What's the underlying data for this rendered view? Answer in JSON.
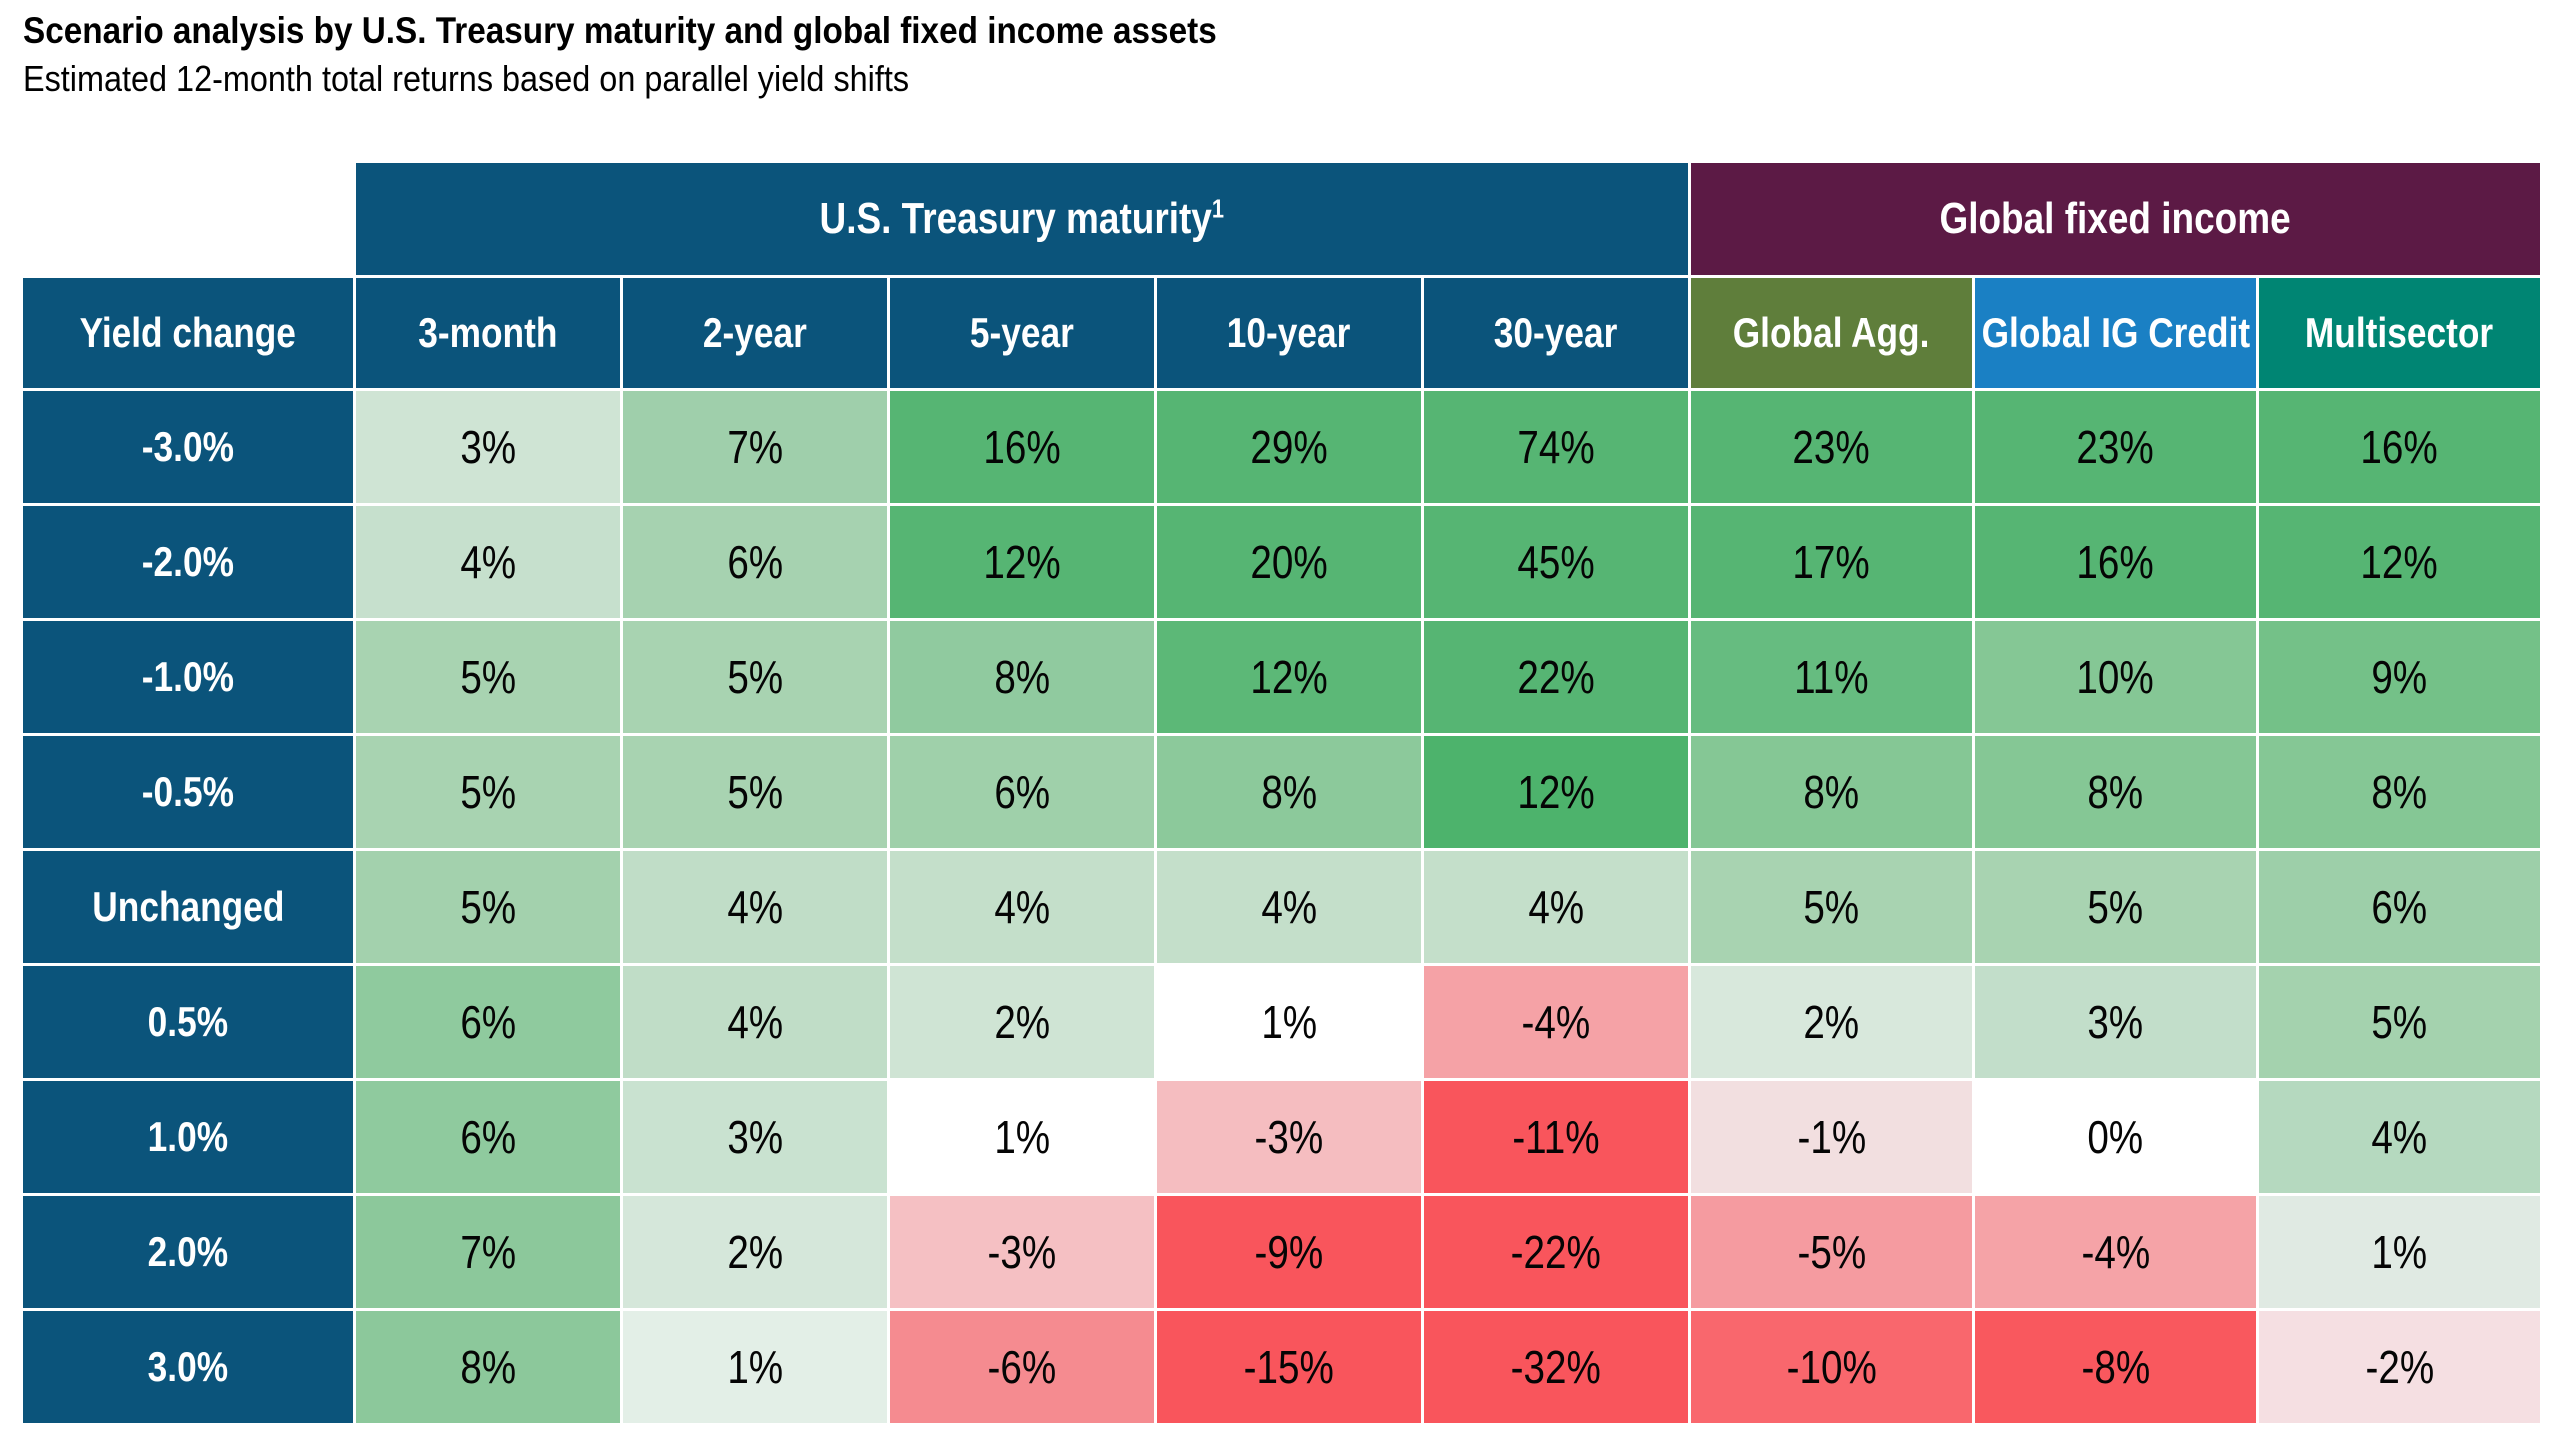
{
  "title": "Scenario analysis by U.S. Treasury maturity and global fixed income assets",
  "subtitle": "Estimated 12-month total returns based on parallel yield shifts",
  "colors": {
    "header_blue": "#0b547b",
    "global_band_maroon": "#5c1a45",
    "global_agg_olive": "#5f7e3b",
    "global_ig_credit_blue": "#1a80c4",
    "multisector_teal": "#008573",
    "positive_strong_green": "#56b573",
    "negative_strong_red": "#f9555c",
    "header_text": "#ffffff",
    "cell_text": "#050505"
  },
  "table": {
    "group_headers": [
      {
        "label": "U.S. Treasury maturity",
        "superscript": "1",
        "color": "#0b547b",
        "span": 5
      },
      {
        "label": "Global fixed income",
        "superscript": "",
        "color": "#5c1a45",
        "span": 3
      }
    ],
    "columns": [
      {
        "label": "Yield change",
        "color": "#0b547b"
      },
      {
        "label": "3-month",
        "color": "#0b547b"
      },
      {
        "label": "2-year",
        "color": "#0b547b"
      },
      {
        "label": "5-year",
        "color": "#0b547b"
      },
      {
        "label": "10-year",
        "color": "#0b547b"
      },
      {
        "label": "30-year",
        "color": "#0b547b"
      },
      {
        "label": "Global Agg.",
        "color": "#5f7e3b"
      },
      {
        "label": "Global IG Credit",
        "color": "#1a80c4"
      },
      {
        "label": "Multisector",
        "color": "#008573"
      }
    ],
    "rows": [
      {
        "label": "-3.0%",
        "values": [
          "3%",
          "7%",
          "16%",
          "29%",
          "74%",
          "23%",
          "23%",
          "16%"
        ],
        "colors": [
          "#cfe4d4",
          "#9fcfab",
          "#56b573",
          "#56b573",
          "#56b573",
          "#56b573",
          "#56b573",
          "#56b573"
        ]
      },
      {
        "label": "-2.0%",
        "values": [
          "4%",
          "6%",
          "12%",
          "20%",
          "45%",
          "17%",
          "16%",
          "12%"
        ],
        "colors": [
          "#c6e0cd",
          "#a6d2b0",
          "#56b573",
          "#56b573",
          "#56b573",
          "#56b573",
          "#56b573",
          "#56b573"
        ]
      },
      {
        "label": "-1.0%",
        "values": [
          "5%",
          "5%",
          "8%",
          "12%",
          "22%",
          "11%",
          "10%",
          "9%"
        ],
        "colors": [
          "#a8d3b1",
          "#a8d3b1",
          "#90ca9f",
          "#5cb877",
          "#56b573",
          "#66bc80",
          "#85c795",
          "#74c188"
        ]
      },
      {
        "label": "-0.5%",
        "values": [
          "5%",
          "5%",
          "6%",
          "8%",
          "12%",
          "8%",
          "8%",
          "8%"
        ],
        "colors": [
          "#a8d3b1",
          "#a8d3b1",
          "#9fd0aa",
          "#8cc99b",
          "#4db36c",
          "#85c795",
          "#85c795",
          "#85c795"
        ]
      },
      {
        "label": "Unchanged",
        "values": [
          "5%",
          "4%",
          "4%",
          "4%",
          "4%",
          "5%",
          "5%",
          "6%"
        ],
        "colors": [
          "#a3d1ad",
          "#c0ddc7",
          "#c4dfca",
          "#c4dfca",
          "#c4dfca",
          "#a8d3b1",
          "#a8d3b1",
          "#9dcfa9"
        ]
      },
      {
        "label": "0.5%",
        "values": [
          "6%",
          "4%",
          "2%",
          "1%",
          "-4%",
          "2%",
          "3%",
          "5%"
        ],
        "colors": [
          "#8fca9e",
          "#c0ddc7",
          "#cfe4d4",
          "#ffffff",
          "#f5a2a6",
          "#d8e8dc",
          "#c2deca",
          "#a4d2ae"
        ]
      },
      {
        "label": "1.0%",
        "values": [
          "6%",
          "3%",
          "1%",
          "-3%",
          "-11%",
          "-1%",
          "0%",
          "4%"
        ],
        "colors": [
          "#8fca9e",
          "#c9e2d0",
          "#ffffff",
          "#f5bdc0",
          "#f9555c",
          "#f2dfe0",
          "#ffffff",
          "#b5d9bf"
        ]
      },
      {
        "label": "2.0%",
        "values": [
          "7%",
          "2%",
          "-3%",
          "-9%",
          "-22%",
          "-5%",
          "-4%",
          "1%"
        ],
        "colors": [
          "#8cc89b",
          "#d5e7da",
          "#f5c0c3",
          "#f9555c",
          "#f9555c",
          "#f59ba0",
          "#f5a3a7",
          "#e0eae3"
        ]
      },
      {
        "label": "3.0%",
        "values": [
          "8%",
          "1%",
          "-6%",
          "-15%",
          "-32%",
          "-10%",
          "-8%",
          "-2%"
        ],
        "colors": [
          "#8cc89b",
          "#e3efe7",
          "#f58b90",
          "#f9555c",
          "#f9555c",
          "#f9676d",
          "#f9585e",
          "#f5dfe2"
        ]
      }
    ]
  },
  "chart_data": {
    "type": "heatmap",
    "title": "Scenario analysis by U.S. Treasury maturity and global fixed income assets",
    "subtitle": "Estimated 12-month total returns based on parallel yield shifts",
    "row_label_header": "Yield change",
    "column_groups": [
      {
        "label": "U.S. Treasury maturity",
        "footnote": "1",
        "columns": [
          "3-month",
          "2-year",
          "5-year",
          "10-year",
          "30-year"
        ]
      },
      {
        "label": "Global fixed income",
        "columns": [
          "Global Agg.",
          "Global IG Credit",
          "Multisector"
        ]
      }
    ],
    "categories_rows": [
      "-3.0%",
      "-2.0%",
      "-1.0%",
      "-0.5%",
      "Unchanged",
      "0.5%",
      "1.0%",
      "2.0%",
      "3.0%"
    ],
    "categories_columns": [
      "3-month",
      "2-year",
      "5-year",
      "10-year",
      "30-year",
      "Global Agg.",
      "Global IG Credit",
      "Multisector"
    ],
    "values_pct": [
      [
        3,
        7,
        16,
        29,
        74,
        23,
        23,
        16
      ],
      [
        4,
        6,
        12,
        20,
        45,
        17,
        16,
        12
      ],
      [
        5,
        5,
        8,
        12,
        22,
        11,
        10,
        9
      ],
      [
        5,
        5,
        6,
        8,
        12,
        8,
        8,
        8
      ],
      [
        5,
        4,
        4,
        4,
        4,
        5,
        5,
        6
      ],
      [
        6,
        4,
        2,
        1,
        -4,
        2,
        3,
        5
      ],
      [
        6,
        3,
        1,
        -3,
        -11,
        -1,
        0,
        4
      ],
      [
        7,
        2,
        -3,
        -9,
        -22,
        -5,
        -4,
        1
      ],
      [
        8,
        1,
        -6,
        -15,
        -32,
        -10,
        -8,
        -2
      ]
    ],
    "color_scale": {
      "negative": "#f9555c",
      "zero": "#ffffff",
      "positive": "#56b573"
    },
    "grid": false,
    "legend": "none"
  }
}
